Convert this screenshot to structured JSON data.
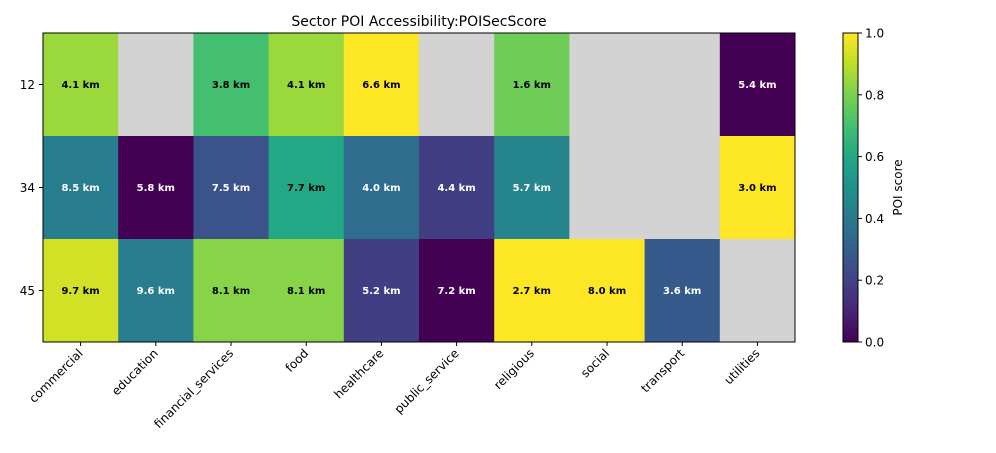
{
  "chart_data": {
    "type": "heatmap",
    "title": "Sector POI Accessibility:POISecScore",
    "rows": [
      "12",
      "34",
      "45"
    ],
    "columns": [
      "commercial",
      "education",
      "financial_services",
      "food",
      "healthcare",
      "public_service",
      "religious",
      "social",
      "transport",
      "utilities"
    ],
    "scores": [
      [
        0.85,
        null,
        0.7,
        0.85,
        1.0,
        null,
        0.78,
        null,
        null,
        0.0
      ],
      [
        0.42,
        0.0,
        0.25,
        0.6,
        0.35,
        0.18,
        0.45,
        null,
        null,
        1.0
      ],
      [
        0.93,
        0.42,
        0.82,
        0.82,
        0.18,
        0.0,
        1.0,
        1.0,
        0.28,
        null
      ]
    ],
    "labels": [
      [
        "4.1 km",
        "",
        "3.8 km",
        "4.1 km",
        "6.6 km",
        "",
        "1.6 km",
        "",
        "",
        "5.4 km"
      ],
      [
        "8.5 km",
        "5.8 km",
        "7.5 km",
        "7.7 km",
        "4.0 km",
        "4.4 km",
        "5.7 km",
        "",
        "",
        "3.0 km"
      ],
      [
        "9.7 km",
        "9.6 km",
        "8.1 km",
        "8.1 km",
        "5.2 km",
        "7.2 km",
        "2.7 km",
        "8.0 km",
        "3.6 km",
        ""
      ]
    ],
    "missing_color": "#d3d3d3",
    "colormap": "viridis",
    "colorbar": {
      "label": "POI score",
      "range": [
        0.0,
        1.0
      ],
      "ticks": [
        "0.0",
        "0.2",
        "0.4",
        "0.6",
        "0.8",
        "1.0"
      ]
    }
  }
}
